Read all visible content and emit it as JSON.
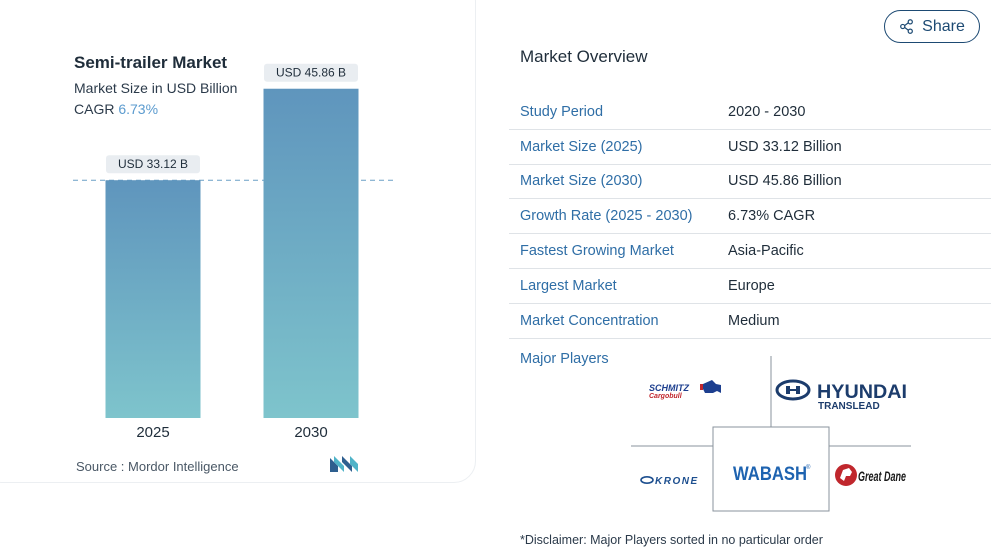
{
  "chart": {
    "title": "Semi-trailer Market",
    "subtitle": "Market Size in USD Billion",
    "cagr_label": "CAGR",
    "cagr_value": "6.73%",
    "source": "Source :  Mordor Intelligence"
  },
  "chart_data": {
    "type": "bar",
    "categories": [
      "2025",
      "2030"
    ],
    "values": [
      33.12,
      45.86
    ],
    "data_labels": [
      "USD 33.12 B",
      "USD 45.86 B"
    ],
    "title": "Semi-trailer Market",
    "subtitle": "Market Size in USD Billion",
    "xlabel": "",
    "ylabel": "",
    "ylim": [
      0,
      50
    ],
    "grid": false,
    "reference_line": 33.12,
    "colors": {
      "bar_top": "#5f95bd",
      "bar_bottom": "#7ec4cc",
      "label_bg": "#e9edf1",
      "dashed_line": "#6a9fc6"
    }
  },
  "share": {
    "label": "Share"
  },
  "overview": {
    "title": "Market Overview",
    "rows": [
      {
        "label": "Study Period",
        "value": "2020 - 2030"
      },
      {
        "label": "Market Size (2025)",
        "value": "USD 33.12 Billion"
      },
      {
        "label": "Market Size (2030)",
        "value": "USD 45.86 Billion"
      },
      {
        "label": "Growth Rate (2025 - 2030)",
        "value": "6.73% CAGR"
      },
      {
        "label": "Fastest Growing Market",
        "value": "Asia-Pacific"
      },
      {
        "label": "Largest Market",
        "value": "Europe"
      },
      {
        "label": "Market Concentration",
        "value": "Medium"
      }
    ],
    "players_label": "Major Players",
    "players": {
      "schmitz_line1": "SCHMITZ",
      "schmitz_line2": "Cargobull",
      "hyundai_line1": "HYUNDAI",
      "hyundai_line2": "TRANSLEAD",
      "krone": "KRONE",
      "wabash": "WABASH",
      "great_dane": "Great Dane"
    },
    "disclaimer": "*Disclaimer: Major Players sorted in no particular order"
  },
  "colors": {
    "accent": "#2f6ea6",
    "brand_dark": "#1d4a73"
  }
}
